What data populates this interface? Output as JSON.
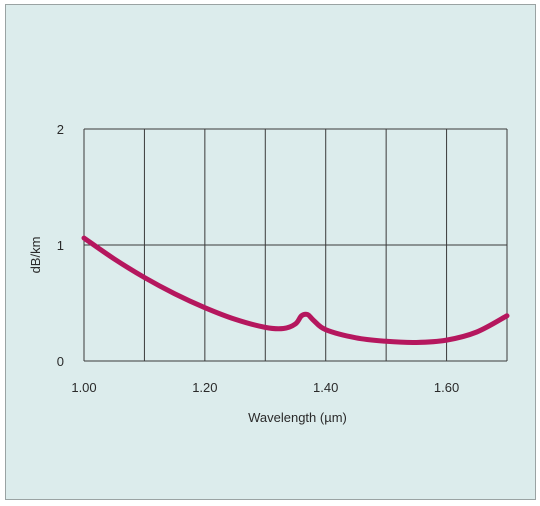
{
  "colors": {
    "background": "#dcecec",
    "grid": "#3a3a3a",
    "line": "#b5175e"
  },
  "chart_data": {
    "type": "line",
    "title": "",
    "xlabel": "Wavelength (µm)",
    "ylabel": "dB/km",
    "xlim": [
      1.0,
      1.7
    ],
    "ylim": [
      0,
      2
    ],
    "x_gridlines": [
      1.0,
      1.1,
      1.2,
      1.3,
      1.4,
      1.5,
      1.6,
      1.7
    ],
    "y_gridlines": [
      0,
      1,
      2
    ],
    "x_ticks": [
      {
        "value": 1.0,
        "label": "1.00"
      },
      {
        "value": 1.2,
        "label": "1.20"
      },
      {
        "value": 1.4,
        "label": "1.40"
      },
      {
        "value": 1.6,
        "label": "1.60"
      }
    ],
    "y_ticks": [
      {
        "value": 0,
        "label": "0"
      },
      {
        "value": 1,
        "label": "1"
      },
      {
        "value": 2,
        "label": "2"
      }
    ],
    "grid": true,
    "legend": "none",
    "series": [
      {
        "x": [
          1.0,
          1.05,
          1.1,
          1.15,
          1.2,
          1.25,
          1.3,
          1.33,
          1.35,
          1.36,
          1.37,
          1.38,
          1.4,
          1.45,
          1.5,
          1.55,
          1.6,
          1.65,
          1.7
        ],
        "values": [
          1.06,
          0.88,
          0.72,
          0.58,
          0.46,
          0.36,
          0.29,
          0.28,
          0.32,
          0.39,
          0.4,
          0.35,
          0.27,
          0.2,
          0.17,
          0.16,
          0.18,
          0.25,
          0.39
        ]
      }
    ]
  }
}
